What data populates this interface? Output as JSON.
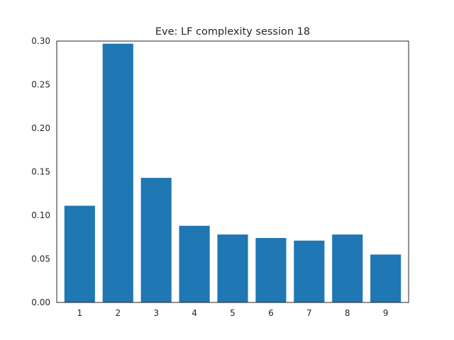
{
  "chart_data": {
    "type": "bar",
    "title": "Eve: LF complexity session 18",
    "xlabel": "",
    "ylabel": "",
    "categories": [
      "1",
      "2",
      "3",
      "4",
      "5",
      "6",
      "7",
      "8",
      "9"
    ],
    "values": [
      0.111,
      0.297,
      0.143,
      0.088,
      0.078,
      0.074,
      0.071,
      0.078,
      0.055
    ],
    "ylim": [
      0.0,
      0.3
    ],
    "yticks": [
      "0.00",
      "0.05",
      "0.10",
      "0.15",
      "0.20",
      "0.25",
      "0.30"
    ],
    "grid": false,
    "legend": "none",
    "bar_color": "#1f77b4"
  }
}
